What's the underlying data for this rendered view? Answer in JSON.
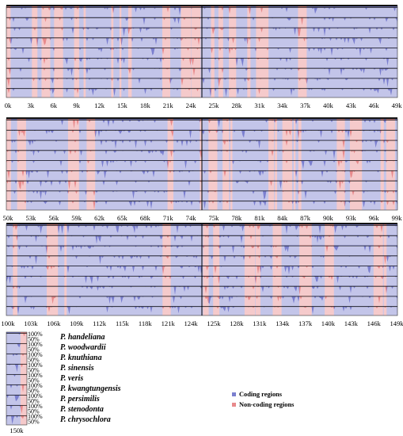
{
  "colors": {
    "coding": "#7b7fcf",
    "noncoding": "#e88a8c",
    "track_line": "#1a1a1a",
    "background": "#ffffff"
  },
  "panels": [
    {
      "ticks": [
        "0k",
        "3k",
        "6k",
        "9k",
        "12k",
        "15k",
        "18k",
        "21k",
        "24k",
        "25k",
        "28k",
        "31k",
        "34k",
        "37k",
        "40k",
        "43k",
        "46k",
        "49k"
      ]
    },
    {
      "ticks": [
        "50k",
        "53k",
        "56k",
        "59k",
        "62k",
        "65k",
        "68k",
        "71k",
        "74k",
        "75k",
        "78k",
        "81k",
        "84k",
        "87k",
        "90k",
        "93k",
        "96k",
        "99k"
      ]
    },
    {
      "ticks": [
        "100k",
        "103k",
        "106k",
        "109k",
        "112k",
        "115k",
        "118k",
        "121k",
        "124k",
        "125k",
        "128k",
        "131k",
        "134k",
        "137k",
        "140k",
        "143k",
        "146k",
        "149k"
      ]
    }
  ],
  "last_panel": {
    "tick": "150k"
  },
  "percent_labels": {
    "high": "100%",
    "mid": "50%"
  },
  "species": [
    "P. handeliana",
    "P. woodwardii",
    "P. knuthiana",
    "P. sinensis",
    "P. veris",
    "P. kwangtungensis",
    "P. persimilis",
    "P. stenodonta",
    "P. chrysochlora"
  ],
  "legend": [
    {
      "label": "Coding regions",
      "color": "#7b7fcf"
    },
    {
      "label": "Non-coding regions",
      "color": "#e88a8c"
    }
  ]
}
